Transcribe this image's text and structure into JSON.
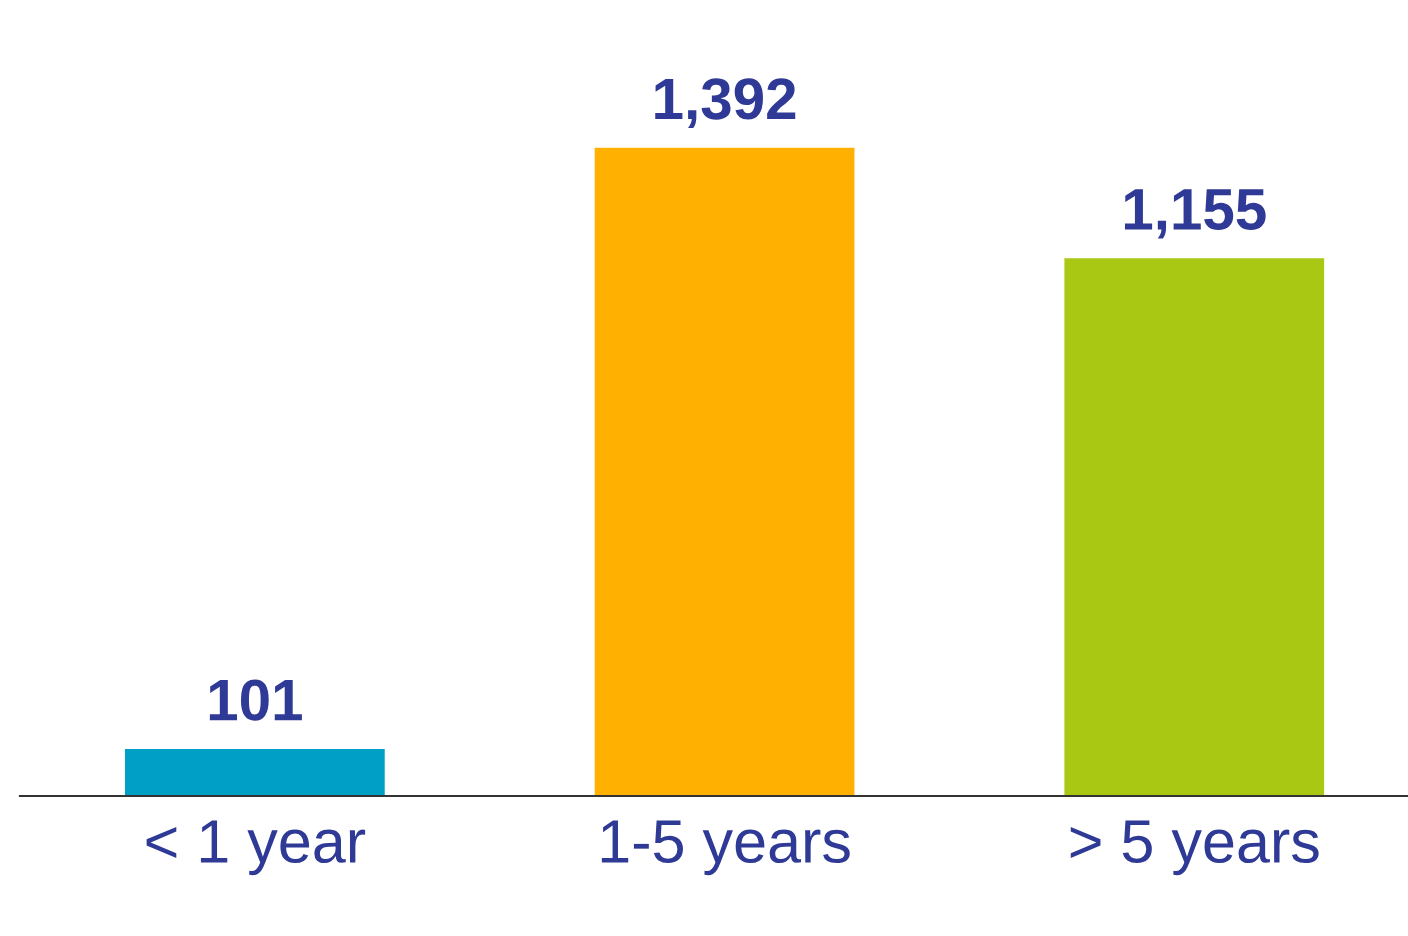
{
  "chart_data": {
    "type": "bar",
    "categories": [
      "< 1 year",
      "1-5 years",
      "> 5 years"
    ],
    "values": [
      101,
      1392,
      1155
    ],
    "colors": [
      "#00a0c6",
      "#ffb000",
      "#a8c814"
    ],
    "value_labels": [
      "101",
      "1,392",
      "1,155"
    ],
    "grid": false,
    "legend": false
  }
}
